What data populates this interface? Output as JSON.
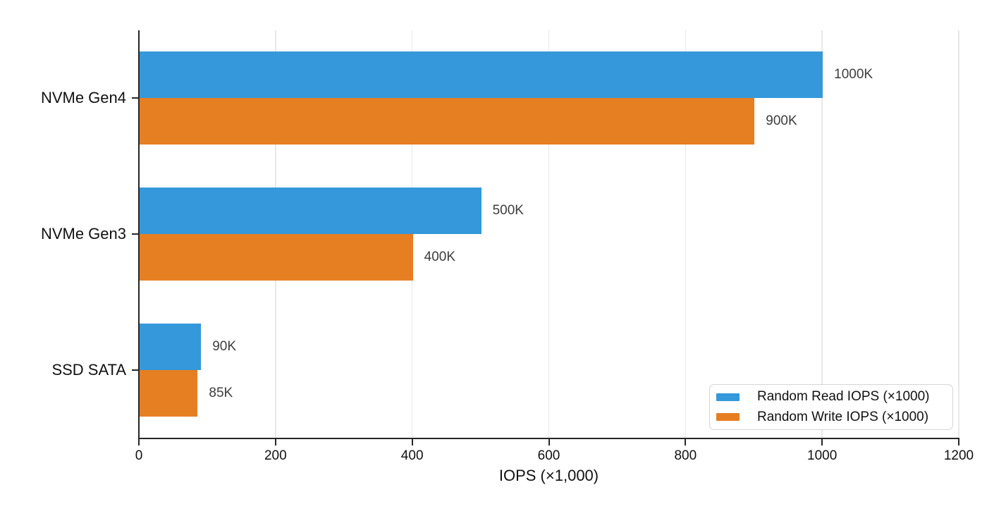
{
  "chart_data": {
    "type": "bar",
    "orientation": "horizontal",
    "title": "",
    "xlabel": "IOPS (×1,000)",
    "ylabel": "",
    "categories": [
      "NVMe Gen4",
      "NVMe Gen3",
      "SSD SATA"
    ],
    "series": [
      {
        "name": "Random Read IOPS (×1000)",
        "color": "#3498db",
        "values": [
          1000,
          500,
          90
        ],
        "data_labels": [
          "1000K",
          "500K",
          "90K"
        ]
      },
      {
        "name": "Random Write IOPS (×1000)",
        "color": "#e67e22",
        "values": [
          900,
          400,
          85
        ],
        "data_labels": [
          "900K",
          "400K",
          "85K"
        ]
      }
    ],
    "xlim": [
      0,
      1200
    ],
    "xticks": [
      0,
      200,
      400,
      600,
      800,
      1000,
      1200
    ],
    "grid": "vertical-only",
    "legend_position": "lower right"
  },
  "colors": {
    "read_bar": "#3498db",
    "write_bar": "#e67e22",
    "axis": "#262626",
    "gridline": "#e8e8e8",
    "data_label": "#3d3d3d",
    "tick_label": "#111111",
    "legend_border": "#d5d5d5",
    "background": "#ffffff"
  }
}
